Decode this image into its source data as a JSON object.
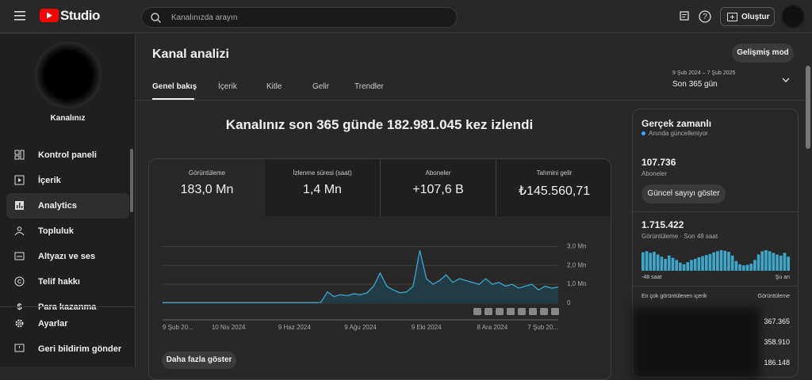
{
  "header": {
    "logo": "Studio",
    "search_placeholder": "Kanalınızda arayın",
    "create_button": "Oluştur"
  },
  "sidebar": {
    "channel_name": "Kanalınız",
    "nav": [
      "Kontrol paneli",
      "İçerik",
      "Analytics",
      "Topluluk",
      "Altyazı ve ses",
      "Telif hakkı",
      "Para kazanma"
    ],
    "footer": [
      "Ayarlar",
      "Geri bildirim gönder"
    ]
  },
  "page": {
    "title": "Kanal analizi",
    "advanced_button": "Gelişmiş mod",
    "tabs": [
      "Genel bakış",
      "İçerik",
      "Kitle",
      "Gelir",
      "Trendler"
    ],
    "date_range": "9 Şub 2024 – 7 Şub 2025",
    "period": "Son 365 gün",
    "headline": "Kanalınız son 365 günde 182.981.045 kez izlendi",
    "metrics": [
      {
        "label": "Görüntüleme",
        "value": "183,0 Mn"
      },
      {
        "label": "İzlenme süresi (saat)",
        "value": "1,4 Mn"
      },
      {
        "label": "Aboneler",
        "value": "+107,6 B"
      },
      {
        "label": "Tahmini gelir",
        "value": "₺145.560,71"
      }
    ],
    "more_button": "Daha fazla göster"
  },
  "chart_data": {
    "type": "line",
    "color": "#3ea6c8",
    "fill": "#223c48",
    "categories": [
      "9 Şub 20...",
      null,
      null,
      null,
      null,
      null,
      null,
      null,
      null,
      null,
      "10 Nis 2024",
      null,
      null,
      null,
      null,
      null,
      null,
      null,
      null,
      null,
      "9 Haz 2024",
      null,
      null,
      null,
      null,
      null,
      null,
      null,
      null,
      null,
      "9 Ağu 2024",
      null,
      null,
      null,
      null,
      null,
      null,
      null,
      null,
      null,
      "9 Eki 2024",
      null,
      null,
      null,
      null,
      null,
      null,
      null,
      null,
      null,
      "8 Ara 2024",
      null,
      null,
      null,
      null,
      null,
      null,
      null,
      null,
      null,
      "7 Şub 20..."
    ],
    "values": [
      30000,
      30000,
      30000,
      30000,
      30000,
      30000,
      30000,
      30000,
      30000,
      30000,
      30000,
      30000,
      30000,
      30000,
      30000,
      30000,
      30000,
      30000,
      30000,
      30000,
      30000,
      30000,
      30000,
      30000,
      40000,
      600000,
      350000,
      450000,
      400000,
      500000,
      450000,
      550000,
      900000,
      1600000,
      900000,
      700000,
      550000,
      600000,
      900000,
      2800000,
      1300000,
      1000000,
      1200000,
      1500000,
      1100000,
      1300000,
      1200000,
      1100000,
      1000000,
      1300000,
      1000000,
      1100000,
      900000,
      1000000,
      800000,
      900000,
      1000000,
      700000,
      900000,
      800000,
      850000
    ],
    "ylim": [
      0,
      3100000
    ],
    "yticks": [
      0,
      {
        "value": 1000000,
        "label": "1,0 Mn"
      },
      {
        "value": 2000000,
        "label": "2,0 Mn"
      },
      {
        "value": 3000000,
        "label": "3,0 Mn"
      }
    ],
    "grid": true
  },
  "realtime": {
    "title": "Gerçek zamanlı",
    "subtitle": "Anında güncelleniyor",
    "subscribers": "107.736",
    "subscribers_label": "Aboneler",
    "refresh_button": "Güncel sayıyı göster",
    "views": "1.715.422",
    "views_label": "Görüntüleme · Son 48 saat",
    "hourly_views": [
      34000,
      36000,
      33000,
      35000,
      30000,
      26000,
      22000,
      28000,
      24000,
      20000,
      15000,
      12000,
      16000,
      20000,
      22000,
      25000,
      27000,
      29000,
      31000,
      34000,
      36000,
      38000,
      37000,
      35000,
      28000,
      18000,
      12000,
      10000,
      11000,
      13000,
      20000,
      30000,
      36000,
      38000,
      36000,
      33000,
      30000,
      28000,
      33000,
      26000
    ],
    "axis_start": "-48 saat",
    "axis_end": "Şu an",
    "top_content_title": "En çok görüntülenen içerik",
    "top_content_column": "Görüntüleme",
    "top_content": [
      "367.365",
      "358.910",
      "186.148"
    ]
  }
}
